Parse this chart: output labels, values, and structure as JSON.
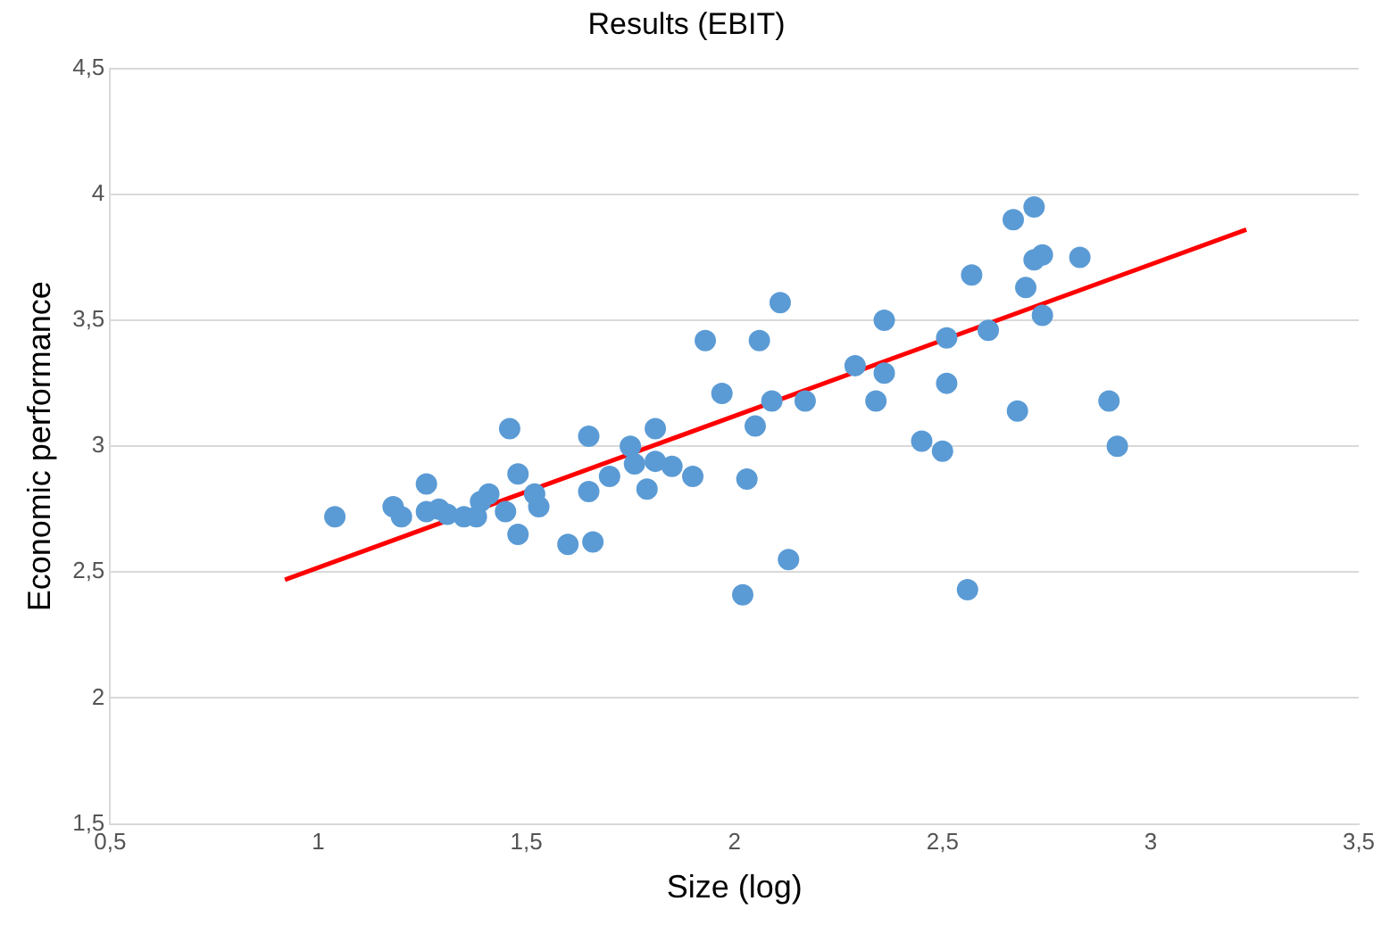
{
  "chart_data": {
    "type": "scatter",
    "title": "Results (EBIT)",
    "xlabel": "Size (log)",
    "ylabel": "Economic performance",
    "xlim": [
      0.5,
      3.5
    ],
    "ylim": [
      1.5,
      4.5
    ],
    "xticks": [
      {
        "value": 0.5,
        "label": "0,5"
      },
      1,
      {
        "value": 1.5,
        "label": "1,5"
      },
      2,
      {
        "value": 2.5,
        "label": "2,5"
      },
      3,
      {
        "value": 3.5,
        "label": "3,5"
      }
    ],
    "yticks": [
      {
        "value": 1.5,
        "label": "1,5"
      },
      2,
      {
        "value": 2.5,
        "label": "2,5"
      },
      3,
      {
        "value": 3.5,
        "label": "3,5"
      },
      4,
      {
        "value": 4.5,
        "label": "4,5"
      }
    ],
    "grid": "y",
    "legend": false,
    "marker": "circle",
    "series": [
      {
        "type": "scatter",
        "color": "#5b9bd5",
        "x": [
          1.04,
          1.18,
          1.2,
          1.26,
          1.26,
          1.29,
          1.31,
          1.35,
          1.38,
          1.39,
          1.41,
          1.46,
          1.45,
          1.48,
          1.48,
          1.53,
          1.52,
          1.6,
          1.65,
          1.65,
          1.66,
          1.7,
          1.75,
          1.76,
          1.79,
          1.81,
          1.81,
          1.85,
          1.9,
          1.93,
          1.97,
          2.02,
          2.03,
          2.05,
          2.06,
          2.09,
          2.11,
          2.13,
          2.17,
          2.29,
          2.34,
          2.36,
          2.36,
          2.45,
          2.5,
          2.51,
          2.51,
          2.56,
          2.57,
          2.61,
          2.67,
          2.68,
          2.7,
          2.72,
          2.72,
          2.74,
          2.74,
          2.83,
          2.9,
          2.92
        ],
        "values": [
          2.72,
          2.76,
          2.72,
          2.85,
          2.74,
          2.75,
          2.73,
          2.72,
          2.72,
          2.78,
          2.81,
          3.07,
          2.74,
          2.89,
          2.65,
          2.76,
          2.81,
          2.61,
          3.04,
          2.82,
          2.62,
          2.88,
          3.0,
          2.93,
          2.83,
          3.07,
          2.94,
          2.92,
          2.88,
          3.42,
          3.21,
          2.41,
          2.87,
          3.08,
          3.42,
          3.18,
          3.57,
          2.55,
          3.18,
          3.32,
          3.18,
          3.5,
          3.29,
          3.02,
          2.98,
          3.43,
          3.25,
          2.43,
          3.68,
          3.46,
          3.9,
          3.14,
          3.63,
          3.95,
          3.74,
          3.76,
          3.52,
          3.75,
          3.18,
          3.0
        ]
      },
      {
        "type": "line",
        "color": "#ff0000",
        "marker": "none",
        "x": [
          0.92,
          3.23
        ],
        "values": [
          2.47,
          3.86
        ]
      }
    ]
  }
}
